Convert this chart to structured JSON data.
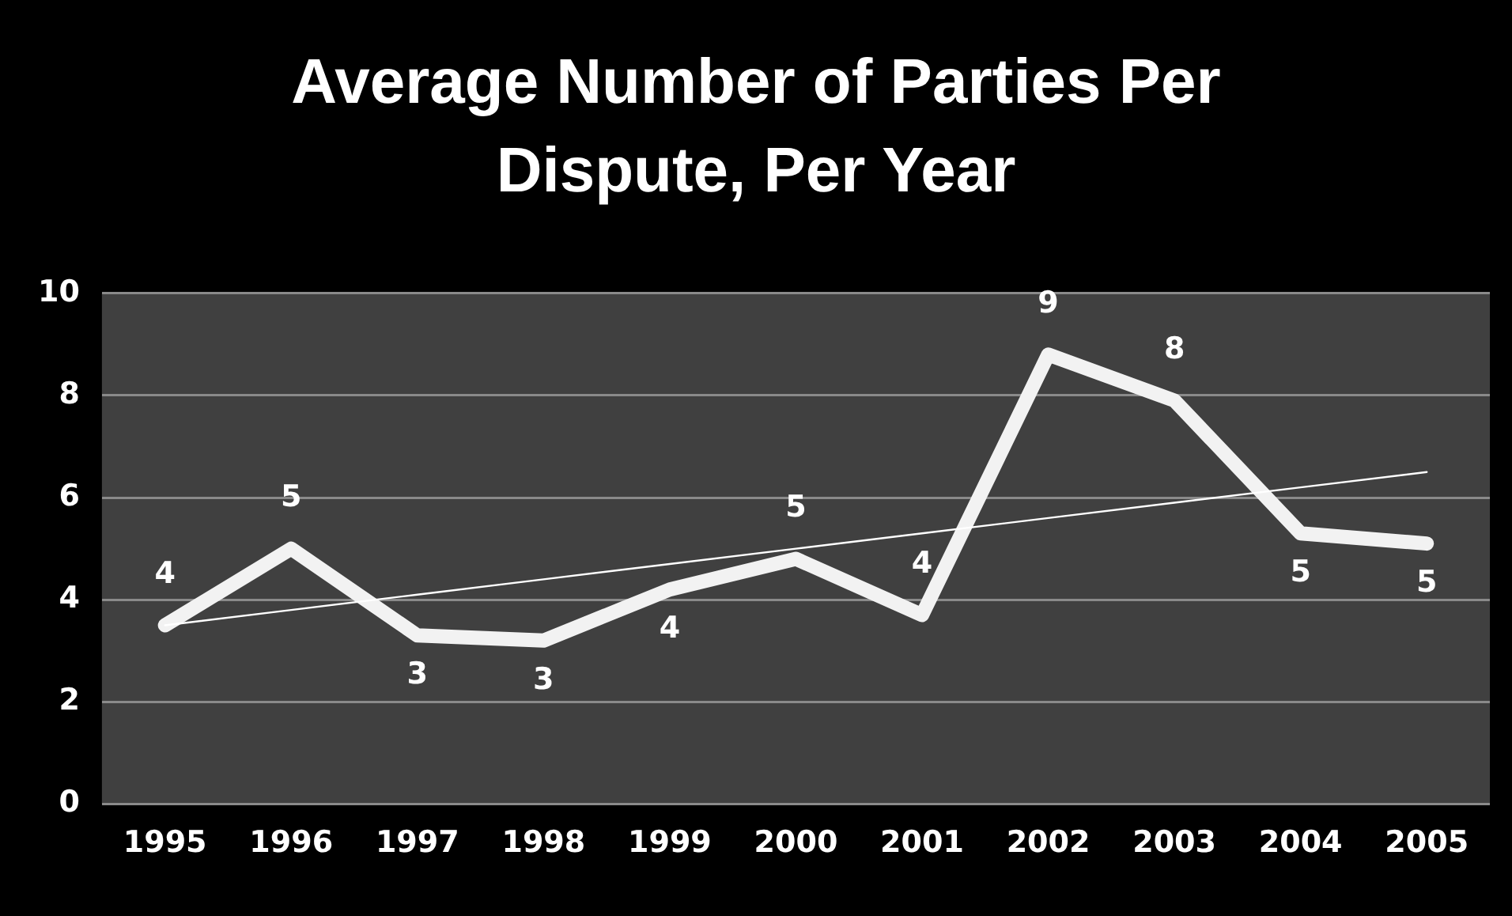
{
  "chart_data": {
    "type": "line",
    "title": "Average Number of Parties Per Dispute, Per Year",
    "categories": [
      "1995",
      "1996",
      "1997",
      "1998",
      "1999",
      "2000",
      "2001",
      "2002",
      "2003",
      "2004",
      "2005"
    ],
    "series": [
      {
        "color": "#f2f2f2",
        "values": [
          3.5,
          5.0,
          3.3,
          3.2,
          4.2,
          4.8,
          3.7,
          8.8,
          7.9,
          5.3,
          5.1
        ],
        "value_labels": [
          "4",
          "5",
          "3",
          "3",
          "4",
          "5",
          "4",
          "9",
          "8",
          "5",
          "5"
        ]
      },
      {
        "type": "line",
        "color": "#ffffff",
        "values": [
          3.5,
          3.8,
          4.1,
          4.4,
          4.7,
          5.0,
          5.3,
          5.6,
          5.9,
          6.2,
          6.5
        ]
      }
    ],
    "ylim": [
      0,
      10
    ],
    "yticks": [
      0,
      2,
      4,
      6,
      8,
      10
    ],
    "grid": "y",
    "legend": false,
    "marker": "none",
    "line_style": "solid"
  }
}
